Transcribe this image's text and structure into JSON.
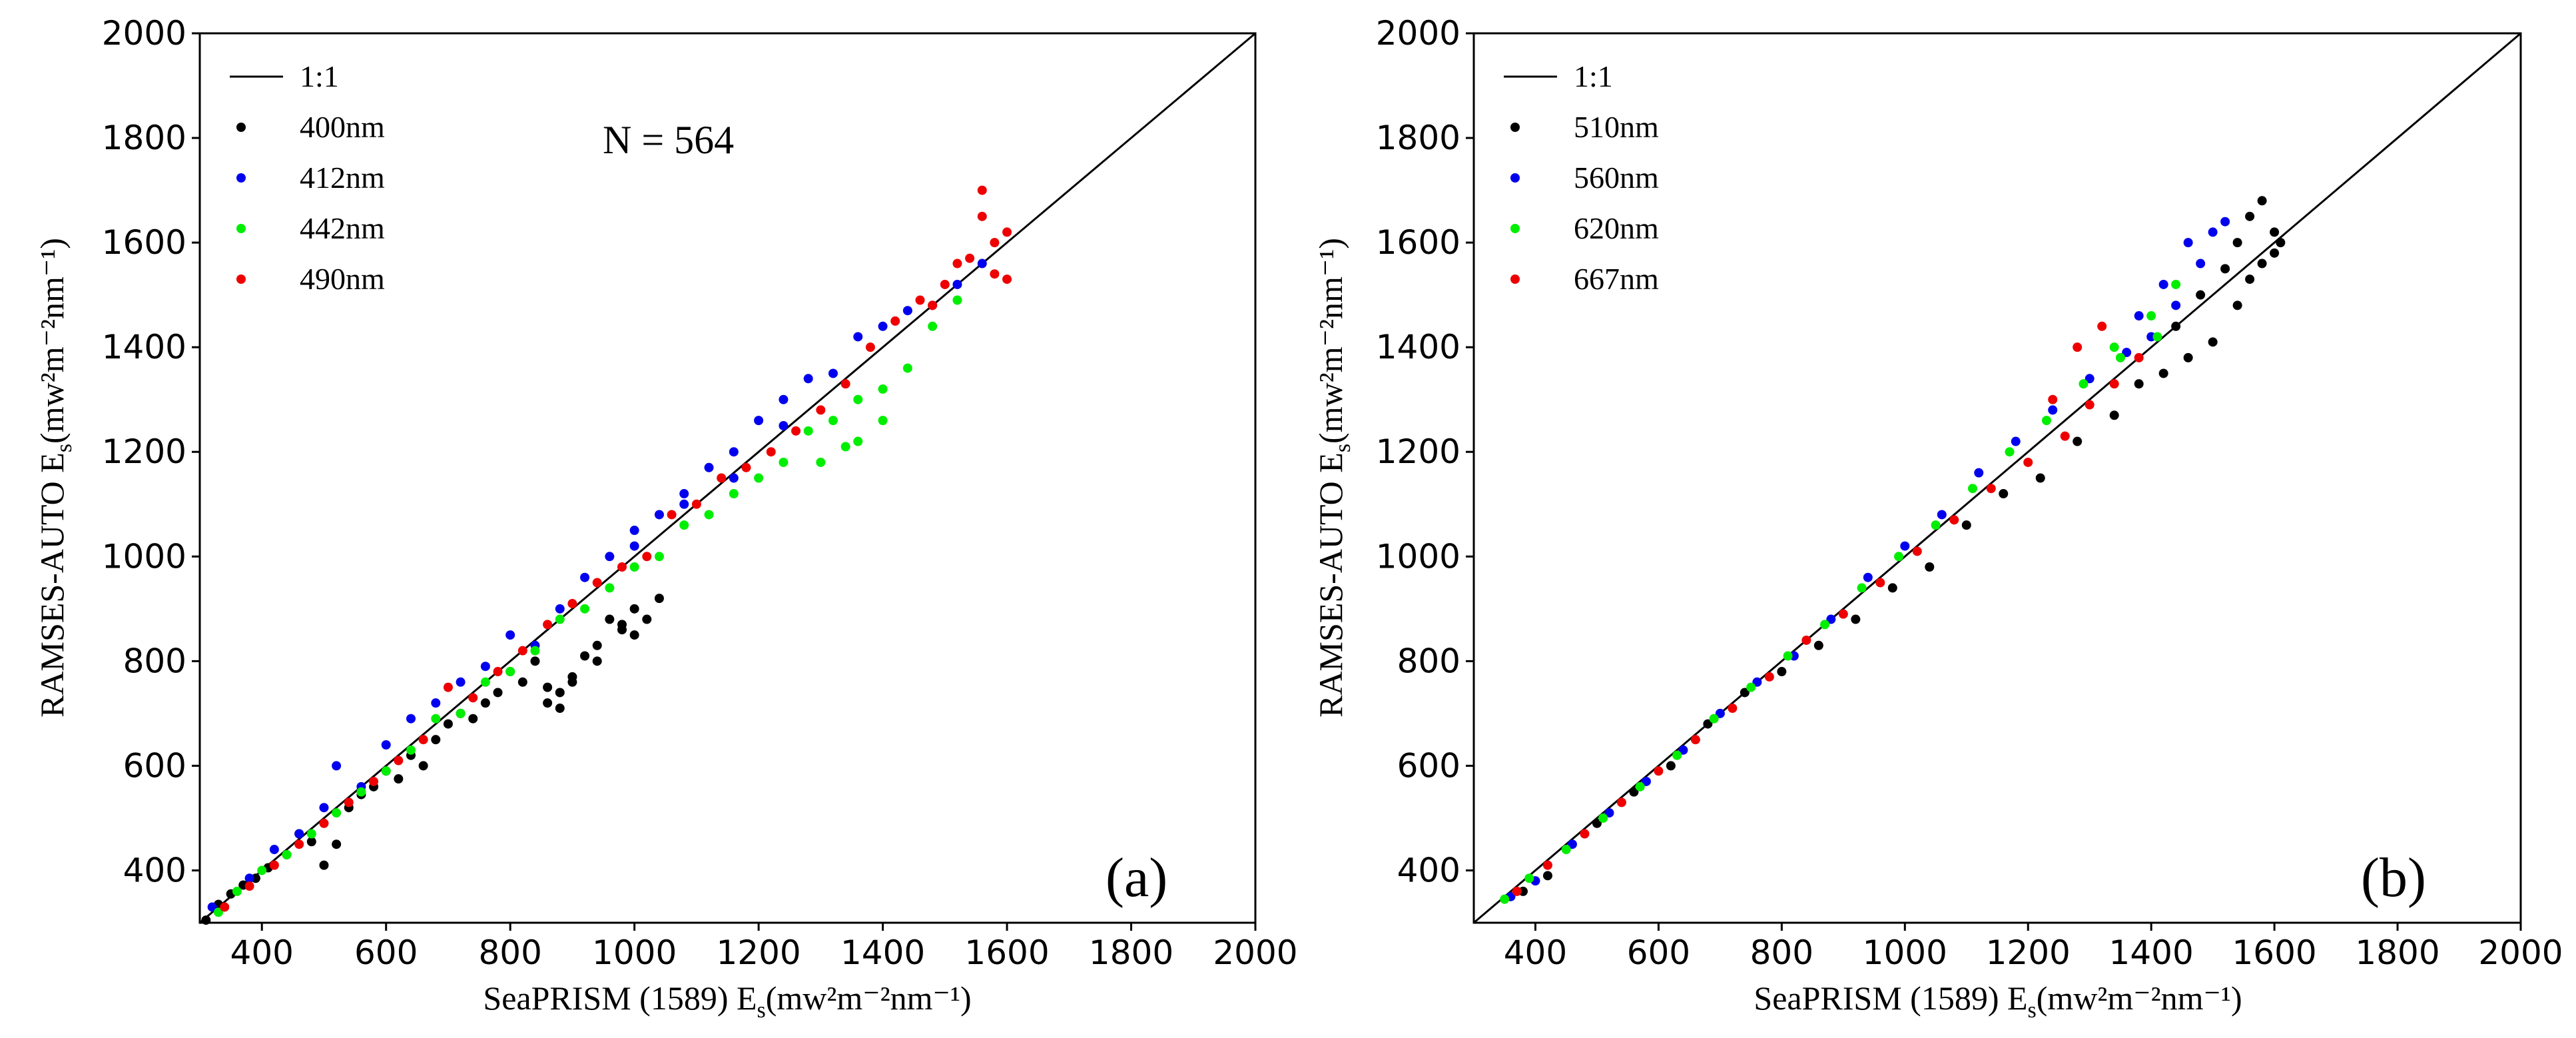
{
  "figure": {
    "colors": {
      "black": "#000000",
      "blue": "#0000ee",
      "green": "#00ee00",
      "red": "#ee0000"
    },
    "charts": [
      {
        "panel": "(a)",
        "annotation": "N = 564",
        "legend_one_to_one": "1:1",
        "xlabel_main": "SeaPRISM (1589) E",
        "xlabel_sub": "s",
        "xlabel_unit": "(mw²m⁻²nm⁻¹)",
        "ylabel_main": "RAMSES-AUTO E",
        "ylabel_sub": "s",
        "ylabel_unit": "(mw²m⁻²nm⁻¹)"
      },
      {
        "panel": "(b)",
        "annotation": "",
        "legend_one_to_one": "1:1",
        "xlabel_main": "SeaPRISM (1589) E",
        "xlabel_sub": "s",
        "xlabel_unit": "(mw²m⁻²nm⁻¹)",
        "ylabel_main": "RAMSES-AUTO E",
        "ylabel_sub": "s",
        "ylabel_unit": "(mw²m⁻²nm⁻¹)"
      }
    ]
  },
  "chart_data": [
    {
      "type": "scatter",
      "title": "",
      "xlabel": "SeaPRISM (1589) Es(mw2m-2nm-1)",
      "ylabel": "RAMSES-AUTO Es(mw2m-2nm-1)",
      "xlim": [
        300,
        2000
      ],
      "ylim": [
        300,
        2000
      ],
      "xticks": [
        "400",
        "600",
        "800",
        "1000",
        "1200",
        "1400",
        "1600",
        "1800",
        "2000"
      ],
      "yticks": [
        "400",
        "600",
        "800",
        "1000",
        "1200",
        "1400",
        "1600",
        "1800",
        "2000"
      ],
      "reference_line": {
        "name": "1:1",
        "slope": 1,
        "intercept": 0
      },
      "annotation": "N = 564",
      "series": [
        {
          "name": "400nm",
          "color": "#000000",
          "x": [
            310,
            330,
            350,
            370,
            390,
            410,
            440,
            460,
            480,
            500,
            520,
            540,
            560,
            580,
            600,
            620,
            640,
            660,
            680,
            700,
            720,
            740,
            760,
            780,
            800,
            820,
            840,
            860,
            880,
            900,
            920,
            940,
            960,
            980,
            1000,
            1020,
            1040,
            860,
            880,
            900,
            940,
            980,
            1000
          ],
          "y": [
            305,
            335,
            355,
            372,
            385,
            405,
            430,
            470,
            455,
            410,
            450,
            520,
            545,
            560,
            590,
            575,
            620,
            600,
            650,
            680,
            700,
            690,
            720,
            740,
            780,
            760,
            800,
            750,
            710,
            770,
            810,
            830,
            880,
            870,
            900,
            880,
            920,
            720,
            740,
            760,
            800,
            860,
            850
          ]
        },
        {
          "name": "412nm",
          "color": "#0000ee",
          "x": [
            320,
            380,
            420,
            460,
            500,
            520,
            560,
            600,
            640,
            680,
            720,
            760,
            800,
            840,
            880,
            920,
            960,
            1000,
            1040,
            1080,
            1120,
            1160,
            1200,
            1240,
            1280,
            1320,
            1360,
            1400,
            1440,
            1480,
            1520,
            1560,
            1000,
            1080,
            1160,
            1240
          ],
          "y": [
            330,
            385,
            440,
            470,
            520,
            600,
            560,
            640,
            690,
            720,
            760,
            790,
            850,
            830,
            900,
            960,
            1000,
            1050,
            1080,
            1120,
            1170,
            1200,
            1260,
            1300,
            1340,
            1350,
            1420,
            1440,
            1470,
            1480,
            1520,
            1560,
            1020,
            1100,
            1150,
            1250
          ]
        },
        {
          "name": "442nm",
          "color": "#00ee00",
          "x": [
            330,
            360,
            400,
            440,
            480,
            520,
            560,
            600,
            640,
            680,
            720,
            760,
            800,
            840,
            880,
            920,
            960,
            1000,
            1040,
            1080,
            1120,
            1160,
            1200,
            1240,
            1280,
            1320,
            1360,
            1400,
            1440,
            1480,
            1520,
            1360,
            1400,
            1300,
            1340
          ],
          "y": [
            320,
            360,
            400,
            430,
            470,
            510,
            550,
            590,
            630,
            690,
            700,
            760,
            780,
            820,
            880,
            900,
            940,
            980,
            1000,
            1060,
            1080,
            1120,
            1150,
            1180,
            1240,
            1260,
            1300,
            1320,
            1360,
            1440,
            1490,
            1220,
            1260,
            1180,
            1210
          ]
        },
        {
          "name": "490nm",
          "color": "#ee0000",
          "x": [
            340,
            380,
            420,
            460,
            500,
            540,
            580,
            620,
            660,
            700,
            740,
            780,
            820,
            860,
            900,
            940,
            980,
            1020,
            1060,
            1100,
            1140,
            1180,
            1220,
            1260,
            1300,
            1340,
            1380,
            1420,
            1460,
            1500,
            1540,
            1560,
            1580,
            1600,
            1600,
            1580,
            1560,
            1480,
            1520
          ],
          "y": [
            330,
            370,
            410,
            450,
            490,
            530,
            570,
            610,
            650,
            750,
            730,
            780,
            820,
            870,
            910,
            950,
            980,
            1000,
            1080,
            1100,
            1150,
            1170,
            1200,
            1240,
            1280,
            1330,
            1400,
            1450,
            1490,
            1520,
            1570,
            1700,
            1600,
            1620,
            1530,
            1540,
            1650,
            1480,
            1560
          ]
        }
      ]
    },
    {
      "type": "scatter",
      "title": "",
      "xlabel": "SeaPRISM (1589) Es(mw2m-2nm-1)",
      "ylabel": "RAMSES-AUTO Es(mw2m-2nm-1)",
      "xlim": [
        300,
        2000
      ],
      "ylim": [
        300,
        2000
      ],
      "xticks": [
        "400",
        "600",
        "800",
        "1000",
        "1200",
        "1400",
        "1600",
        "1800",
        "2000"
      ],
      "yticks": [
        "400",
        "600",
        "800",
        "1000",
        "1200",
        "1400",
        "1600",
        "1800",
        "2000"
      ],
      "reference_line": {
        "name": "1:1",
        "slope": 1,
        "intercept": 0
      },
      "series": [
        {
          "name": "510nm",
          "color": "#000000",
          "x": [
            380,
            420,
            500,
            560,
            620,
            680,
            740,
            800,
            860,
            920,
            980,
            1040,
            1100,
            1160,
            1220,
            1280,
            1340,
            1380,
            1420,
            1460,
            1500,
            1540,
            1560,
            1580,
            1600,
            1610,
            1600,
            1580,
            1560,
            1540,
            1520,
            1480,
            1440
          ],
          "y": [
            360,
            390,
            490,
            550,
            600,
            680,
            740,
            780,
            830,
            880,
            940,
            980,
            1060,
            1120,
            1150,
            1220,
            1270,
            1330,
            1350,
            1380,
            1410,
            1480,
            1530,
            1560,
            1580,
            1600,
            1620,
            1680,
            1650,
            1600,
            1550,
            1500,
            1440
          ]
        },
        {
          "name": "560nm",
          "color": "#0000ee",
          "x": [
            360,
            400,
            460,
            520,
            580,
            640,
            700,
            760,
            820,
            880,
            940,
            1000,
            1060,
            1120,
            1180,
            1240,
            1300,
            1360,
            1400,
            1440,
            1480,
            1500,
            1520,
            1460,
            1420,
            1380
          ],
          "y": [
            350,
            380,
            450,
            510,
            570,
            630,
            700,
            760,
            810,
            880,
            960,
            1020,
            1080,
            1160,
            1220,
            1280,
            1340,
            1390,
            1420,
            1480,
            1560,
            1620,
            1640,
            1600,
            1520,
            1460
          ]
        },
        {
          "name": "620nm",
          "color": "#00ee00",
          "x": [
            350,
            390,
            450,
            510,
            570,
            630,
            690,
            750,
            810,
            870,
            930,
            990,
            1050,
            1110,
            1170,
            1230,
            1290,
            1350,
            1410,
            1440,
            1400,
            1340
          ],
          "y": [
            345,
            385,
            440,
            500,
            560,
            620,
            690,
            750,
            810,
            870,
            940,
            1000,
            1060,
            1130,
            1200,
            1260,
            1330,
            1380,
            1420,
            1520,
            1460,
            1400
          ]
        },
        {
          "name": "667nm",
          "color": "#ee0000",
          "x": [
            370,
            420,
            480,
            540,
            600,
            660,
            720,
            780,
            840,
            900,
            960,
            1020,
            1080,
            1140,
            1200,
            1260,
            1300,
            1340,
            1380,
            1240,
            1280,
            1320
          ],
          "y": [
            360,
            410,
            470,
            530,
            590,
            650,
            710,
            770,
            840,
            890,
            950,
            1010,
            1070,
            1130,
            1180,
            1230,
            1290,
            1330,
            1380,
            1300,
            1400,
            1440
          ]
        }
      ]
    }
  ]
}
